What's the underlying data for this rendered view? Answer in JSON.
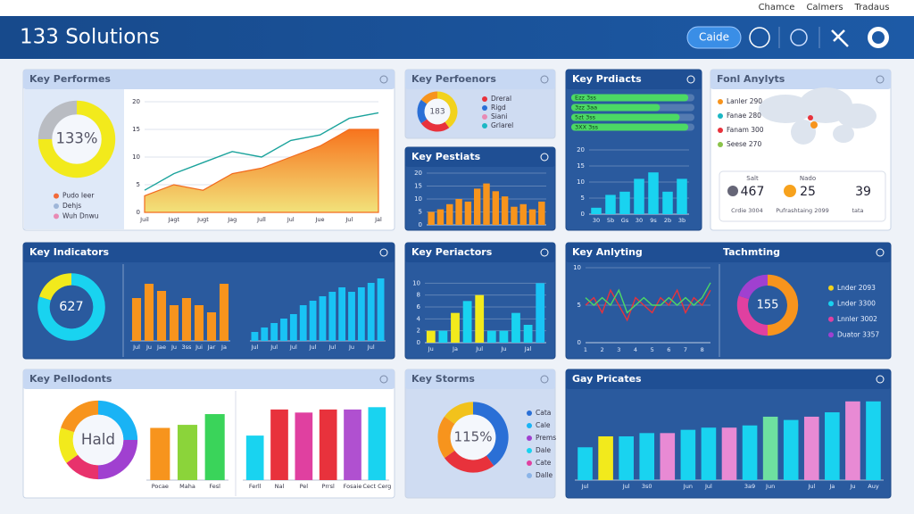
{
  "header": {
    "title": "133 Solutions",
    "links": [
      "Chamce",
      "Calmers",
      "Tradaus"
    ],
    "button": "Caide"
  },
  "panels": [
    {
      "title": "Key Performes",
      "charts": [
        {
          "type": "donut",
          "center": "133%",
          "values": [
            75,
            25
          ],
          "colors": [
            "#f2ea1c",
            "#b9bcc2"
          ]
        },
        {
          "type": "legend",
          "items": [
            {
              "name": "Pudo Ieer",
              "color": "#f26a3a"
            },
            {
              "name": "Dehjs",
              "color": "#9fb6d8"
            },
            {
              "name": "Wuh Dnwu",
              "color": "#e88ab4"
            }
          ]
        },
        {
          "type": "line",
          "categories": [
            "Juil",
            "Jagt",
            "Jugt",
            "Jag",
            "Jull",
            "Jul",
            "Jue",
            "Jul",
            "Jal"
          ],
          "ylim": [
            0,
            20
          ],
          "yticks": [
            0,
            5,
            10,
            15,
            20
          ],
          "series": [
            {
              "color": "#f7941d",
              "area": true,
              "values": [
                3,
                5,
                4,
                7,
                8,
                10,
                12,
                15,
                15
              ]
            },
            {
              "color": "#1ba39c",
              "values": [
                4,
                7,
                9,
                11,
                10,
                13,
                14,
                17,
                18
              ]
            }
          ]
        }
      ]
    },
    {
      "title": "Key Perfoenors",
      "charts": [
        {
          "type": "donut",
          "center": "183",
          "values": [
            40,
            25,
            20,
            15
          ],
          "colors": [
            "#f2d21c",
            "#e8323c",
            "#2a6fd6",
            "#f7941d"
          ]
        },
        {
          "type": "legend",
          "items": [
            {
              "name": "Dreral",
              "color": "#e8323c"
            },
            {
              "name": "Rigd",
              "color": "#2a6fd6"
            },
            {
              "name": "Siani",
              "color": "#e88ab4"
            },
            {
              "name": "Grlarel",
              "color": "#1bb7c4"
            }
          ]
        }
      ]
    },
    {
      "title": "Key Pestiats",
      "charts": [
        {
          "type": "bar",
          "color": "#f7941d",
          "ylim": [
            0,
            20
          ],
          "yticks": [
            0,
            5,
            10,
            15,
            20
          ],
          "categories": [
            null,
            null,
            null,
            null,
            null,
            null,
            null,
            null,
            null,
            null,
            null,
            null,
            null
          ],
          "values": [
            5,
            6,
            8,
            10,
            9,
            14,
            16,
            13,
            11,
            7,
            8,
            6,
            9
          ]
        }
      ]
    },
    {
      "title": "Key Prdiacts",
      "charts": [
        {
          "type": "progress",
          "labels": [
            "Ezz 3ss",
            "3zz 3aa",
            "5zt 3ss",
            "3XX 3ss"
          ],
          "values": [
            95,
            72,
            88,
            95
          ]
        },
        {
          "type": "bar",
          "color": "#19d3f0",
          "ylim": [
            0,
            20
          ],
          "yticks": [
            0,
            5,
            10,
            15,
            20
          ],
          "categories": [
            "30",
            "5b",
            "Gs",
            "30",
            "9s",
            "2b",
            "3b"
          ],
          "values": [
            2,
            6,
            7,
            11,
            13,
            7,
            11
          ]
        }
      ]
    },
    {
      "title": "Fonl Anylyts",
      "charts": [
        {
          "type": "legend",
          "items": [
            {
              "name": "Lanler 290",
              "color": "#f7941d"
            },
            {
              "name": "Fanae 280",
              "color": "#1bb7c4"
            },
            {
              "name": "Fanam 300",
              "color": "#e8323c"
            },
            {
              "name": "Seese 270",
              "color": "#8bc34a"
            }
          ]
        },
        {
          "type": "stats",
          "items": [
            {
              "head": "Salt",
              "value": 467,
              "label": "Crdie 3004"
            },
            {
              "head": "Nado",
              "value": 25,
              "label": "Pufrashtaing 2099"
            },
            {
              "value": 39,
              "label": "tata"
            }
          ]
        }
      ]
    },
    {
      "title": "Key Indicators",
      "charts": [
        {
          "type": "donut",
          "center": "627",
          "values": [
            80,
            20
          ],
          "colors": [
            "#19d3f0",
            "#f2ea1c"
          ]
        },
        {
          "type": "bar",
          "color": "#f7941d",
          "ylim": [
            0,
            10
          ],
          "categories": [
            "Jul",
            "Ju",
            "Jae",
            "Ju",
            "3ss",
            "Jui",
            "Jar",
            "Ja"
          ],
          "values": [
            6,
            8,
            7,
            5,
            6,
            5,
            4,
            8
          ]
        },
        {
          "type": "bar",
          "color": "#19c3f5",
          "ylim": [
            0,
            16
          ],
          "categories": [
            "Jul",
            null,
            "Jul",
            null,
            "Jul",
            null,
            "Jul",
            null,
            "Jul",
            null,
            "Ju",
            null,
            "Jul",
            null
          ],
          "values": [
            2,
            3,
            4,
            5,
            6,
            8,
            9,
            10,
            11,
            12,
            11,
            12,
            13,
            14
          ]
        }
      ]
    },
    {
      "title": "Key Periactors",
      "charts": [
        {
          "type": "bar",
          "colors": [
            "#f2ea1c",
            "#19d3f0",
            "#f2ea1c",
            "#19d3f0",
            "#f2ea1c",
            "#19d3f0",
            "#19d3f0",
            "#19d3f0",
            "#19d3f0",
            "#19c3f5"
          ],
          "ylim": [
            0,
            12
          ],
          "yticks": [
            0,
            2,
            4,
            6,
            8,
            10
          ],
          "categories": [
            "Ju",
            null,
            "Ja",
            null,
            "Jul",
            null,
            "Ju",
            null,
            "Jal",
            null
          ],
          "values": [
            2,
            2,
            5,
            7,
            8,
            2,
            2,
            5,
            3,
            10
          ]
        }
      ]
    },
    {
      "title": "Key Anlyting",
      "title2": "Tachmting",
      "charts": [
        {
          "type": "line",
          "ylim": [
            0,
            10
          ],
          "yticks": [
            0,
            5,
            10
          ],
          "categories": [
            "1",
            null,
            "2",
            null,
            "3",
            null,
            "4",
            null,
            "5",
            null,
            "6",
            null,
            "7",
            null,
            "8",
            null
          ],
          "series": [
            {
              "color": "#e8323c",
              "values": [
                5,
                6,
                4,
                7,
                5,
                3,
                6,
                5,
                4,
                6,
                5,
                7,
                4,
                6,
                5,
                7
              ]
            },
            {
              "color": "#4cd964",
              "values": [
                6,
                5,
                6,
                5,
                7,
                4,
                5,
                6,
                5,
                5,
                6,
                5,
                6,
                5,
                6,
                8
              ]
            }
          ]
        },
        {
          "type": "donut",
          "center": "155",
          "values": [
            50,
            30,
            20
          ],
          "colors": [
            "#f7941d",
            "#e040a0",
            "#a040d0"
          ]
        },
        {
          "type": "legend",
          "items": [
            {
              "name": "Lnder 2093",
              "color": "#f2d21c"
            },
            {
              "name": "Lnder 3300",
              "color": "#19d3f0"
            },
            {
              "name": "Lnnler 3002",
              "color": "#e040a0"
            },
            {
              "name": "Duator 3357",
              "color": "#a040d0"
            }
          ]
        }
      ]
    },
    {
      "title": "Key Pellodonts",
      "charts": [
        {
          "type": "donut",
          "center": "Hald",
          "values": [
            25,
            25,
            15,
            15,
            20
          ],
          "colors": [
            "#19b3f5",
            "#a040d0",
            "#e8326c",
            "#f2ea1c",
            "#f7941d"
          ]
        },
        {
          "type": "bar",
          "colors": [
            "#f7941d",
            "#8bd43a",
            "#3ad45a"
          ],
          "ylim": [
            0,
            100
          ],
          "categories": [
            "Pocae",
            "Maha",
            "Fesl"
          ],
          "values": [
            68,
            72,
            86
          ]
        },
        {
          "type": "bar",
          "colors": [
            "#19d3f0",
            "#e8323c",
            "#e040a0",
            "#e8323c",
            "#b050d0",
            "#19d3f0"
          ],
          "ylim": [
            0,
            100
          ],
          "categories": [
            "Ferll",
            "Nal",
            "Pel",
            "Prrsl",
            "Fosaie",
            "Cect Cerg"
          ],
          "values": [
            58,
            92,
            88,
            92,
            92,
            95
          ]
        }
      ]
    },
    {
      "title": "Key Storms",
      "charts": [
        {
          "type": "donut",
          "center": "115%",
          "values": [
            40,
            25,
            20,
            15
          ],
          "colors": [
            "#2a6fd6",
            "#e8323c",
            "#f7941d",
            "#f2c21c"
          ]
        },
        {
          "type": "legend",
          "items": [
            {
              "name": "Cata",
              "color": "#2a6fd6"
            },
            {
              "name": "Cale",
              "color": "#19b3f5"
            },
            {
              "name": "Prems",
              "color": "#a040d0"
            },
            {
              "name": "Dale",
              "color": "#19d3f0"
            },
            {
              "name": "Cate",
              "color": "#e040a0"
            },
            {
              "name": "Dalle",
              "color": "#8bb4e8"
            }
          ]
        }
      ]
    },
    {
      "title": "Gay Pricates",
      "charts": [
        {
          "type": "bar",
          "colors": [
            "#19d3f0",
            "#f2ea1c",
            "#19d3f0",
            "#19d3f0",
            "#e88ad4",
            "#19d3f0",
            "#19d3f0",
            "#e88ad4",
            "#19d3f0",
            "#6ee0a0",
            "#19d3f0",
            "#e88ad4",
            "#19d3f0",
            "#e88ad4",
            "#19d3f0"
          ],
          "ylim": [
            0,
            80
          ],
          "categories": [
            "Jul",
            null,
            "Jul",
            "3s0",
            null,
            "Jun",
            "Jul",
            null,
            "3a9",
            "Jun",
            null,
            "Jul",
            "Ja",
            "Ju",
            "Auy"
          ],
          "values": [
            30,
            40,
            40,
            43,
            43,
            46,
            48,
            48,
            50,
            58,
            55,
            58,
            62,
            72,
            72
          ]
        }
      ]
    }
  ]
}
